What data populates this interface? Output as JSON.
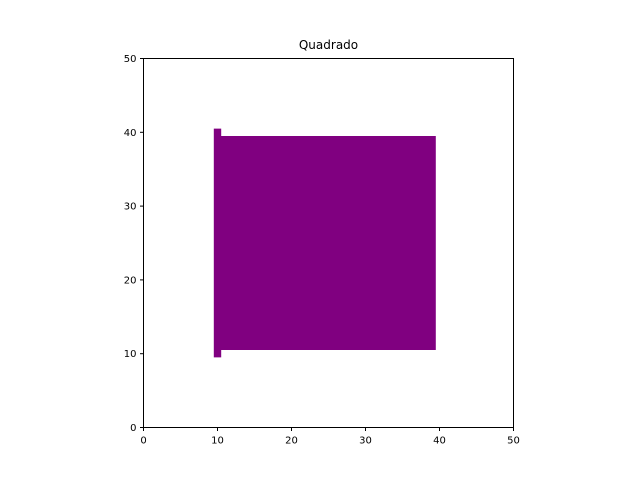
{
  "chart_data": {
    "type": "area",
    "title": "Quadrado",
    "xlabel": "",
    "ylabel": "",
    "xlim": [
      0,
      50
    ],
    "ylim": [
      0,
      50
    ],
    "xticks": [
      "0",
      "10",
      "20",
      "30",
      "40",
      "50"
    ],
    "yticks": [
      "0",
      "10",
      "20",
      "30",
      "40",
      "50"
    ],
    "grid": false,
    "fill_color": "#800080",
    "shape": {
      "x": [
        9.5,
        10.5,
        10.5,
        39.5,
        39.5,
        10.5,
        10.5,
        9.5
      ],
      "y": [
        9.5,
        9.5,
        10.5,
        10.5,
        39.5,
        39.5,
        40.5,
        40.5
      ]
    }
  }
}
